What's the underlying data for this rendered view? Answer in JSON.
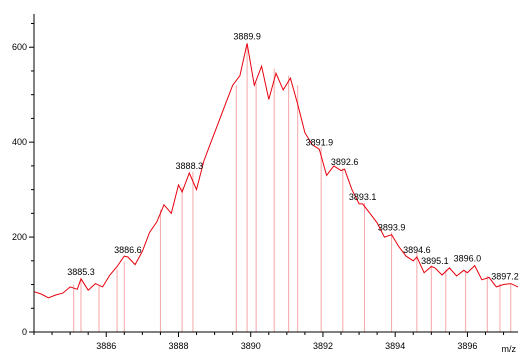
{
  "chart_data": {
    "type": "line",
    "title": "",
    "xlabel": "m/z",
    "ylabel": "",
    "xlim": [
      3884.0,
      3897.4
    ],
    "ylim": [
      0,
      670
    ],
    "grid": false,
    "colors": {
      "line": "#e8000d",
      "sticks": "#f4a6a8",
      "axis": "#000000"
    },
    "x_ticks": [
      3886,
      3888,
      3890,
      3892,
      3894,
      3896
    ],
    "y_ticks": [
      0,
      200,
      400,
      600
    ],
    "series": [
      {
        "x": [
          3884.0,
          3884.2,
          3884.4,
          3884.6,
          3884.8,
          3885.0,
          3885.2,
          3885.3,
          3885.5,
          3885.7,
          3885.9,
          3886.1,
          3886.3,
          3886.5,
          3886.6,
          3886.8,
          3887.0,
          3887.2,
          3887.4,
          3887.6,
          3887.8,
          3888.0,
          3888.1,
          3888.3,
          3888.5,
          3888.7,
          3888.9,
          3889.1,
          3889.3,
          3889.5,
          3889.7,
          3889.9,
          3890.1,
          3890.3,
          3890.5,
          3890.7,
          3890.9,
          3891.1,
          3891.3,
          3891.5,
          3891.7,
          3891.9,
          3892.1,
          3892.3,
          3892.5,
          3892.6,
          3892.8,
          3893.0,
          3893.1,
          3893.3,
          3893.5,
          3893.7,
          3893.9,
          3894.1,
          3894.3,
          3894.5,
          3894.6,
          3894.8,
          3895.0,
          3895.1,
          3895.3,
          3895.5,
          3895.7,
          3895.9,
          3896.0,
          3896.2,
          3896.4,
          3896.6,
          3896.8,
          3897.0,
          3897.2,
          3897.4
        ],
        "y": [
          85,
          80,
          72,
          78,
          82,
          95,
          90,
          112,
          88,
          102,
          95,
          120,
          138,
          160,
          158,
          142,
          170,
          210,
          232,
          268,
          250,
          310,
          295,
          335,
          300,
          360,
          400,
          440,
          480,
          520,
          540,
          608,
          520,
          560,
          490,
          545,
          510,
          535,
          480,
          420,
          395,
          385,
          330,
          350,
          340,
          343,
          300,
          270,
          270,
          250,
          230,
          200,
          205,
          180,
          160,
          150,
          158,
          125,
          138,
          135,
          120,
          135,
          118,
          130,
          125,
          140,
          110,
          115,
          95,
          100,
          102,
          95
        ]
      }
    ],
    "sticks_x": [
      3885.1,
      3885.3,
      3885.8,
      3886.3,
      3886.5,
      3887.5,
      3888.1,
      3888.4,
      3889.6,
      3889.9,
      3890.15,
      3890.65,
      3891.05,
      3891.3,
      3891.95,
      3892.55,
      3893.15,
      3893.9,
      3894.6,
      3895.0,
      3895.4,
      3895.95,
      3896.55,
      3896.9,
      3897.2
    ],
    "sticks_height": [
      100,
      112,
      98,
      132,
      148,
      258,
      305,
      338,
      520,
      608,
      525,
      555,
      540,
      520,
      390,
      345,
      272,
      210,
      170,
      140,
      132,
      128,
      118,
      102,
      100
    ],
    "annotations": [
      {
        "x": 3885.3,
        "y": 112,
        "text": "3885.3"
      },
      {
        "x": 3886.6,
        "y": 158,
        "text": "3886.6"
      },
      {
        "x": 3888.3,
        "y": 335,
        "text": "3888.3"
      },
      {
        "x": 3889.9,
        "y": 608,
        "text": "3889.9"
      },
      {
        "x": 3891.9,
        "y": 385,
        "text": "3891.9"
      },
      {
        "x": 3892.6,
        "y": 343,
        "text": "3892.6"
      },
      {
        "x": 3893.1,
        "y": 270,
        "text": "3893.1"
      },
      {
        "x": 3893.9,
        "y": 205,
        "text": "3893.9"
      },
      {
        "x": 3894.6,
        "y": 158,
        "text": "3894.6"
      },
      {
        "x": 3895.1,
        "y": 135,
        "text": "3895.1"
      },
      {
        "x": 3896.0,
        "y": 140,
        "text": "3896.0"
      },
      {
        "x": 3897.2,
        "y": 102,
        "text": "3897.2"
      }
    ]
  }
}
